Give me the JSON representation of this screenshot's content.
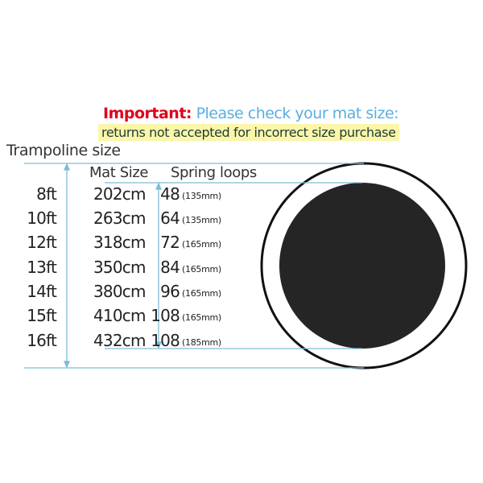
{
  "notice": {
    "important_label": "Important:",
    "check_text": "Please check your mat size:",
    "warning": "returns not accepted for incorrect size purchase"
  },
  "labels": {
    "trampoline_size": "Trampoline size",
    "mat_size": "Mat Size",
    "spring_loops": "Spring loops"
  },
  "rows": [
    {
      "trampoline": "8ft",
      "mat": "202cm",
      "loops": "48",
      "spring": "(135mm)"
    },
    {
      "trampoline": "10ft",
      "mat": "263cm",
      "loops": "64",
      "spring": "(135mm)"
    },
    {
      "trampoline": "12ft",
      "mat": "318cm",
      "loops": "72",
      "spring": "(165mm)"
    },
    {
      "trampoline": "13ft",
      "mat": "350cm",
      "loops": "84",
      "spring": "(165mm)"
    },
    {
      "trampoline": "14ft",
      "mat": "380cm",
      "loops": "96",
      "spring": "(165mm)"
    },
    {
      "trampoline": "15ft",
      "mat": "410cm",
      "loops": "108",
      "spring": "(165mm)"
    },
    {
      "trampoline": "16ft",
      "mat": "432cm",
      "loops": "108",
      "spring": "(185mm)"
    }
  ],
  "colors": {
    "important": "#e0001b",
    "notice": "#5aaee0",
    "highlight": "#fbf6a8",
    "dimension_lines": "#7dbcd6",
    "mat": "#252525"
  }
}
